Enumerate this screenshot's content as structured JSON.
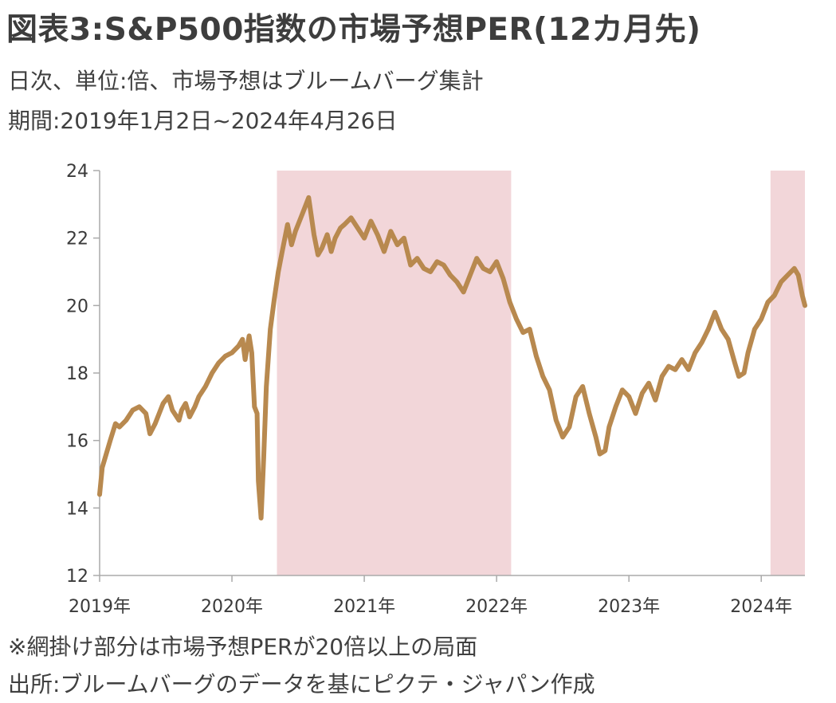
{
  "title": "図表3:S&P500指数の市場予想PER(12カ月先)",
  "subtitle_lines": [
    "日次、単位:倍、市場予想はブルームバーグ集計",
    "期間:2019年1月2日~2024年4月26日"
  ],
  "notes": [
    "※網掛け部分は市場予想PERが20倍以上の局面",
    "出所:ブルームバーグのデータを基にピクテ・ジャパン作成"
  ],
  "colors": {
    "line": "#b8894f",
    "shade": "#f2d6d9",
    "axis": "#aaaaaa"
  },
  "chart_data": {
    "type": "line",
    "x_start": "2019-01-02",
    "x_end": "2024-04-26",
    "xlim": [
      2019.0,
      2024.33
    ],
    "ylim": [
      12,
      24
    ],
    "y_ticks": [
      12,
      14,
      16,
      18,
      20,
      22,
      24
    ],
    "y_tick_labels": [
      "12",
      "14",
      "16",
      "18",
      "20",
      "22",
      "24"
    ],
    "x_ticks": [
      2019,
      2020,
      2021,
      2022,
      2023,
      2024
    ],
    "x_tick_labels": [
      "2019年",
      "2020年",
      "2021年",
      "2022年",
      "2023年",
      "2024年"
    ],
    "grid": false,
    "shaded_regions": [
      {
        "from": 2020.34,
        "to": 2022.11
      },
      {
        "from": 2024.07,
        "to": 2024.33
      }
    ],
    "series": [
      {
        "x": [
          2019.0,
          2019.02,
          2019.05,
          2019.08,
          2019.12,
          2019.15,
          2019.2,
          2019.25,
          2019.3,
          2019.35,
          2019.38,
          2019.42,
          2019.45,
          2019.48,
          2019.52,
          2019.55,
          2019.6,
          2019.62,
          2019.65,
          2019.68,
          2019.72,
          2019.75,
          2019.8,
          2019.85,
          2019.9,
          2019.95,
          2020.0,
          2020.05,
          2020.08,
          2020.1,
          2020.13,
          2020.15,
          2020.17,
          2020.19,
          2020.2,
          2020.22,
          2020.24,
          2020.26,
          2020.29,
          2020.32,
          2020.35,
          2020.38,
          2020.42,
          2020.45,
          2020.48,
          2020.52,
          2020.55,
          2020.58,
          2020.62,
          2020.65,
          2020.68,
          2020.72,
          2020.75,
          2020.78,
          2020.82,
          2020.85,
          2020.9,
          2020.95,
          2021.0,
          2021.05,
          2021.1,
          2021.15,
          2021.2,
          2021.25,
          2021.3,
          2021.35,
          2021.4,
          2021.45,
          2021.5,
          2021.55,
          2021.6,
          2021.65,
          2021.7,
          2021.75,
          2021.8,
          2021.85,
          2021.9,
          2021.95,
          2022.0,
          2022.05,
          2022.1,
          2022.15,
          2022.2,
          2022.25,
          2022.3,
          2022.35,
          2022.4,
          2022.45,
          2022.5,
          2022.55,
          2022.6,
          2022.65,
          2022.7,
          2022.75,
          2022.78,
          2022.82,
          2022.85,
          2022.9,
          2022.95,
          2023.0,
          2023.05,
          2023.1,
          2023.15,
          2023.2,
          2023.25,
          2023.3,
          2023.35,
          2023.4,
          2023.45,
          2023.5,
          2023.55,
          2023.6,
          2023.65,
          2023.7,
          2023.75,
          2023.8,
          2023.83,
          2023.87,
          2023.9,
          2023.95,
          2024.0,
          2024.05,
          2024.1,
          2024.15,
          2024.2,
          2024.25,
          2024.28,
          2024.31,
          2024.33
        ],
        "values": [
          14.4,
          15.2,
          15.6,
          16.0,
          16.5,
          16.4,
          16.6,
          16.9,
          17.0,
          16.8,
          16.2,
          16.5,
          16.8,
          17.1,
          17.3,
          16.9,
          16.6,
          16.9,
          17.1,
          16.7,
          17.0,
          17.3,
          17.6,
          18.0,
          18.3,
          18.5,
          18.6,
          18.8,
          19.0,
          18.4,
          19.1,
          18.6,
          17.0,
          16.8,
          14.8,
          13.7,
          15.5,
          17.6,
          19.3,
          20.2,
          21.0,
          21.6,
          22.4,
          21.8,
          22.2,
          22.6,
          22.9,
          23.2,
          22.1,
          21.5,
          21.7,
          22.1,
          21.6,
          22.0,
          22.3,
          22.4,
          22.6,
          22.3,
          22.0,
          22.5,
          22.1,
          21.6,
          22.2,
          21.8,
          22.0,
          21.2,
          21.4,
          21.1,
          21.0,
          21.3,
          21.2,
          20.9,
          20.7,
          20.4,
          20.9,
          21.4,
          21.1,
          21.0,
          21.3,
          20.8,
          20.1,
          19.6,
          19.2,
          19.3,
          18.5,
          17.9,
          17.5,
          16.6,
          16.1,
          16.4,
          17.3,
          17.6,
          16.8,
          16.1,
          15.6,
          15.7,
          16.4,
          17.0,
          17.5,
          17.3,
          16.8,
          17.4,
          17.7,
          17.2,
          17.9,
          18.2,
          18.1,
          18.4,
          18.1,
          18.6,
          18.9,
          19.3,
          19.8,
          19.3,
          19.0,
          18.3,
          17.9,
          18.0,
          18.6,
          19.3,
          19.6,
          20.1,
          20.3,
          20.7,
          20.9,
          21.1,
          20.9,
          20.3,
          20.0
        ]
      }
    ]
  }
}
